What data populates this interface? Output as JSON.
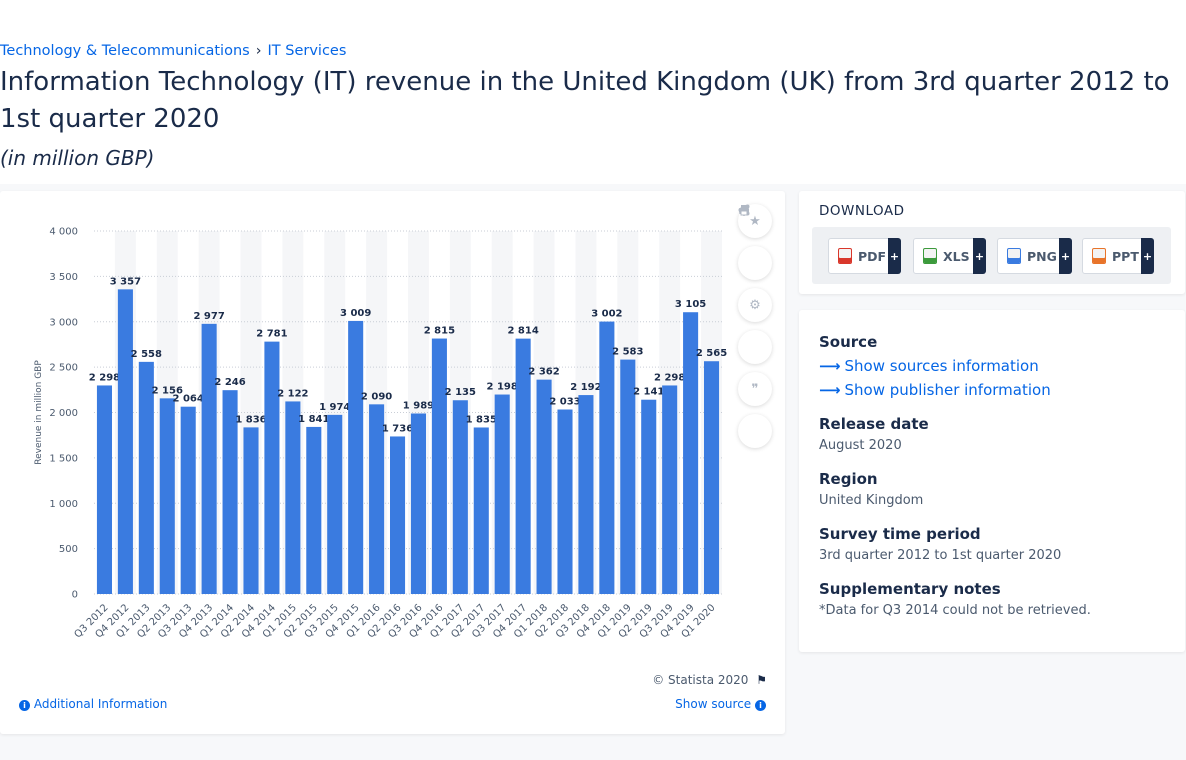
{
  "breadcrumb": {
    "item1": "Technology & Telecommunications",
    "separator": "›",
    "item2": "IT Services"
  },
  "title": "Information Technology (IT) revenue in the United Kingdom (UK) from 3rd quarter 2012 to 1st quarter 2020",
  "subtitle": "(in million GBP)",
  "chart_data": {
    "type": "bar",
    "categories": [
      "Q3 2012",
      "Q4 2012",
      "Q1 2013",
      "Q2 2013",
      "Q3 2013",
      "Q4 2013",
      "Q1 2014",
      "Q2 2014",
      "Q4 2014",
      "Q1 2015",
      "Q2 2015",
      "Q3 2015",
      "Q4 2015",
      "Q1 2016",
      "Q2 2016",
      "Q3 2016",
      "Q4 2016",
      "Q1 2017",
      "Q2 2017",
      "Q3 2017",
      "Q4 2017",
      "Q1 2018",
      "Q2 2018",
      "Q3 2018",
      "Q4 2018",
      "Q1 2019",
      "Q2 2019",
      "Q3 2019",
      "Q4 2019",
      "Q1 2020"
    ],
    "values": [
      2298,
      3357,
      2558,
      2156,
      2064,
      2977,
      2246,
      1836,
      2781,
      2122,
      1841,
      1974,
      3009,
      2090,
      1736,
      1989,
      2815,
      2135,
      1835,
      2198,
      2814,
      2362,
      2033,
      2192,
      3002,
      2583,
      2141,
      2298,
      3105,
      2565
    ],
    "value_labels": [
      "2 298",
      "3 357",
      "2 558",
      "2 156",
      "2 064",
      "2 977",
      "2 246",
      "1 836",
      "2 781",
      "2 122",
      "1 841",
      "1 974",
      "3 009",
      "2 090",
      "1 736",
      "1 989",
      "2 815",
      "2 135",
      "1 835",
      "2 198",
      "2 814",
      "2 362",
      "2 033",
      "2 192",
      "3 002",
      "2 583",
      "2 141",
      "2 298",
      "3 105",
      "2 565"
    ],
    "yticks": [
      0,
      500,
      1000,
      1500,
      2000,
      2500,
      3000,
      3500,
      4000
    ],
    "ytick_labels": [
      "0",
      "500",
      "1 000",
      "1 500",
      "2 000",
      "2 500",
      "3 000",
      "3 500",
      "4 000"
    ],
    "ylim": [
      0,
      4000
    ],
    "ylabel": "Revenue in million GBP",
    "xlabel": "",
    "bar_color": "#3a7be0",
    "grid": true
  },
  "chart_footer": {
    "copyright": "© Statista 2020",
    "additional_info": "Additional Information",
    "show_source": "Show source"
  },
  "tools": [
    "star-icon",
    "bell-icon",
    "gear-icon",
    "share-icon",
    "quote-icon",
    "print-icon"
  ],
  "download": {
    "title": "DOWNLOAD",
    "buttons": [
      {
        "label": "PDF",
        "color": "#d9372b"
      },
      {
        "label": "XLS",
        "color": "#3c9a3c"
      },
      {
        "label": "PNG",
        "color": "#3a7be0"
      },
      {
        "label": "PPT",
        "color": "#e8742a"
      }
    ],
    "plus": "+"
  },
  "meta": {
    "source_heading": "Source",
    "show_sources": "Show sources information",
    "show_publisher": "Show publisher information",
    "release_heading": "Release date",
    "release_value": "August 2020",
    "region_heading": "Region",
    "region_value": "United Kingdom",
    "survey_heading": "Survey time period",
    "survey_value": "3rd quarter 2012 to 1st quarter 2020",
    "notes_heading": "Supplementary notes",
    "notes_value": "*Data for Q3 2014 could not be retrieved."
  }
}
